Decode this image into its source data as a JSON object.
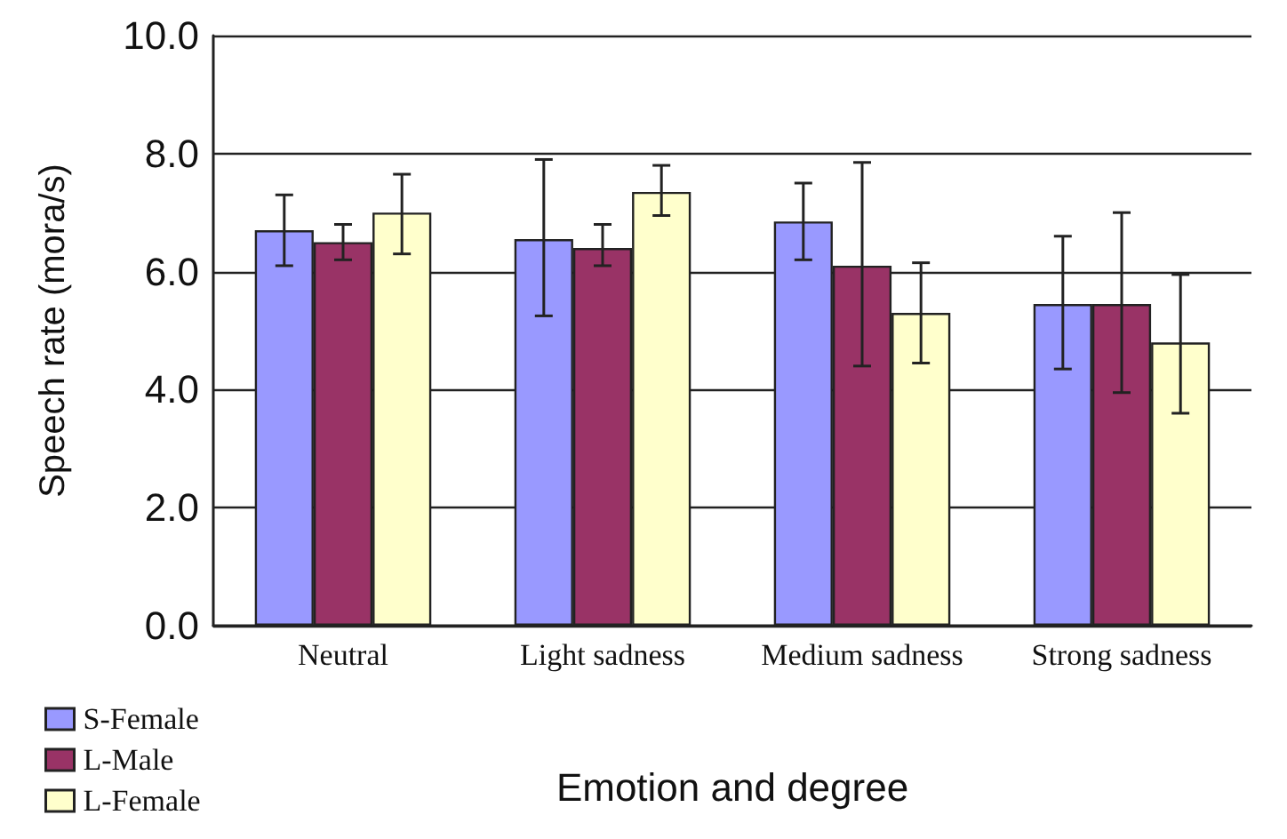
{
  "chart_data": {
    "type": "bar",
    "xlabel": "Emotion and degree",
    "ylabel": "Speech rate (mora/s)",
    "categories": [
      "Neutral",
      "Light sadness",
      "Medium sadness",
      "Strong sadness"
    ],
    "series": [
      {
        "name": "S-Female",
        "color": "#9999ff",
        "values": [
          6.7,
          6.55,
          6.85,
          5.45
        ],
        "errors": [
          [
            6.1,
            7.3
          ],
          [
            5.25,
            7.9
          ],
          [
            6.2,
            7.5
          ],
          [
            4.35,
            6.6
          ]
        ]
      },
      {
        "name": "L-Male",
        "color": "#993366",
        "values": [
          6.5,
          6.4,
          6.1,
          5.45
        ],
        "errors": [
          [
            6.2,
            6.8
          ],
          [
            6.1,
            6.8
          ],
          [
            4.4,
            7.85
          ],
          [
            3.95,
            7.0
          ]
        ]
      },
      {
        "name": "L-Female",
        "color": "#ffffcc",
        "values": [
          7.0,
          7.35,
          5.3,
          4.8
        ],
        "errors": [
          [
            6.3,
            7.65
          ],
          [
            6.95,
            7.8
          ],
          [
            4.45,
            6.15
          ],
          [
            3.6,
            5.95
          ]
        ]
      }
    ],
    "ylim": [
      0,
      10
    ],
    "yticks": [
      {
        "value": 0,
        "label": "0.0"
      },
      {
        "value": 2,
        "label": "2.0"
      },
      {
        "value": 4,
        "label": "4.0"
      },
      {
        "value": 6,
        "label": "6.0"
      },
      {
        "value": 8,
        "label": "8.0"
      },
      {
        "value": 10,
        "label": "10.0"
      }
    ],
    "grid": "y",
    "legend": "bottom left"
  }
}
